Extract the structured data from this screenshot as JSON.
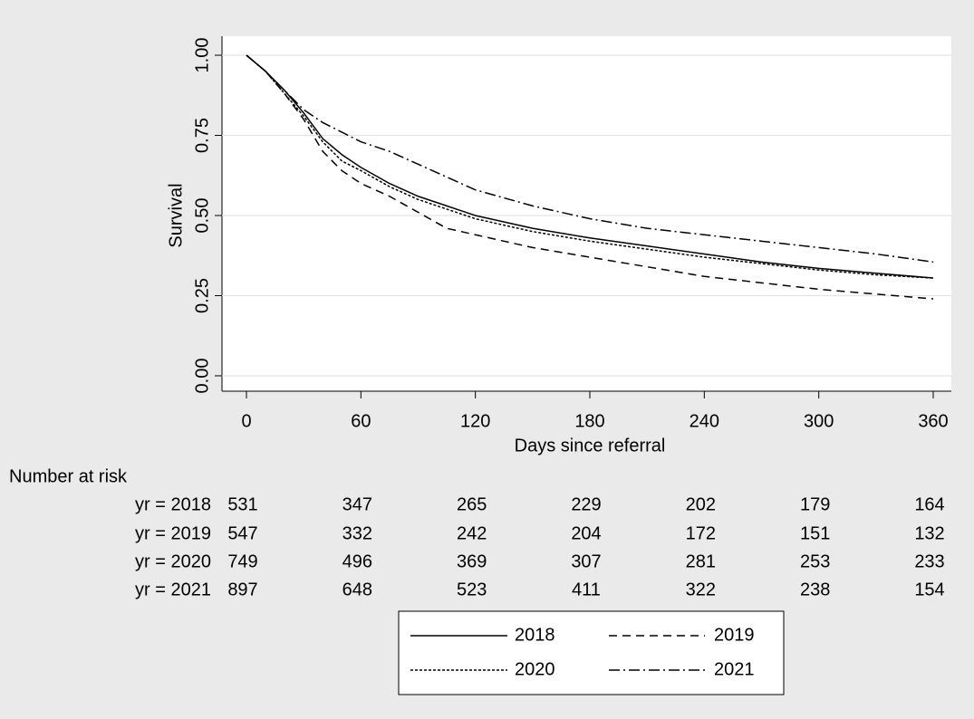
{
  "chart_data": {
    "type": "line",
    "x_label": "Days since referral",
    "y_label": "Survival",
    "x": [
      0,
      10,
      20,
      30,
      40,
      50,
      60,
      75,
      90,
      105,
      120,
      150,
      180,
      210,
      240,
      270,
      300,
      330,
      360
    ],
    "series": [
      {
        "name": "2018",
        "color": "#000000",
        "dash": "none",
        "values": [
          1,
          0.95,
          0.89,
          0.82,
          0.74,
          0.69,
          0.65,
          0.6,
          0.56,
          0.53,
          0.5,
          0.46,
          0.43,
          0.405,
          0.38,
          0.355,
          0.335,
          0.32,
          0.305
        ]
      },
      {
        "name": "2019",
        "color": "#000000",
        "dash": "9,6",
        "values": [
          1,
          0.95,
          0.88,
          0.8,
          0.7,
          0.64,
          0.6,
          0.56,
          0.51,
          0.46,
          0.44,
          0.4,
          0.37,
          0.34,
          0.31,
          0.29,
          0.27,
          0.255,
          0.24
        ]
      },
      {
        "name": "2020",
        "color": "#000000",
        "dash": "3,2",
        "values": [
          1,
          0.95,
          0.88,
          0.81,
          0.73,
          0.67,
          0.64,
          0.59,
          0.55,
          0.52,
          0.49,
          0.45,
          0.42,
          0.395,
          0.37,
          0.35,
          0.33,
          0.315,
          0.305
        ]
      },
      {
        "name": "2021",
        "color": "#000000",
        "dash": "12,4,2,4",
        "values": [
          1,
          0.95,
          0.89,
          0.83,
          0.79,
          0.76,
          0.73,
          0.7,
          0.66,
          0.62,
          0.58,
          0.53,
          0.49,
          0.46,
          0.44,
          0.42,
          0.4,
          0.38,
          0.355
        ]
      }
    ],
    "xlim": [
      0,
      360
    ],
    "xticks": [
      0,
      60,
      120,
      180,
      240,
      300,
      360
    ],
    "ylim": [
      0,
      1
    ],
    "yticks": [
      {
        "value": 0,
        "label": "0.00"
      },
      0.25,
      {
        "value": 0.5,
        "label": "0.50"
      },
      0.75,
      {
        "value": 1,
        "label": "1.00"
      }
    ],
    "grid": true,
    "legend": "bottom",
    "risk_table": {
      "title": "Number at risk",
      "rows": [
        {
          "label": "yr = 2018",
          "values": [
            531,
            347,
            265,
            229,
            202,
            179,
            164
          ]
        },
        {
          "label": "yr = 2019",
          "values": [
            547,
            332,
            242,
            204,
            172,
            151,
            132
          ]
        },
        {
          "label": "yr = 2020",
          "values": [
            749,
            496,
            369,
            307,
            281,
            253,
            233
          ]
        },
        {
          "label": "yr = 2021",
          "values": [
            897,
            648,
            523,
            411,
            322,
            238,
            154
          ]
        }
      ]
    }
  }
}
